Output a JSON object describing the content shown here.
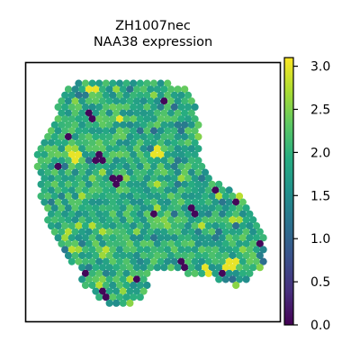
{
  "chart_data": {
    "type": "scatter",
    "title_lines": [
      "ZH1007nec",
      "NAA38 expression"
    ],
    "xlabel": "",
    "ylabel": "",
    "grid": false,
    "colorbar": {
      "colormap": "viridis",
      "range": [
        0.0,
        3.1
      ],
      "ticks": [
        0.0,
        0.5,
        1.0,
        1.5,
        2.0,
        2.5,
        3.0
      ],
      "tick_labels": [
        "0.0",
        "0.5",
        "1.0",
        "1.5",
        "2.0",
        "2.5",
        "3.0"
      ]
    },
    "value_summary": {
      "description": "spatial spot expression values",
      "typical_range": [
        1.5,
        2.4
      ],
      "low_value_clusters": 0.05,
      "high_value_spots": 3.0
    }
  }
}
